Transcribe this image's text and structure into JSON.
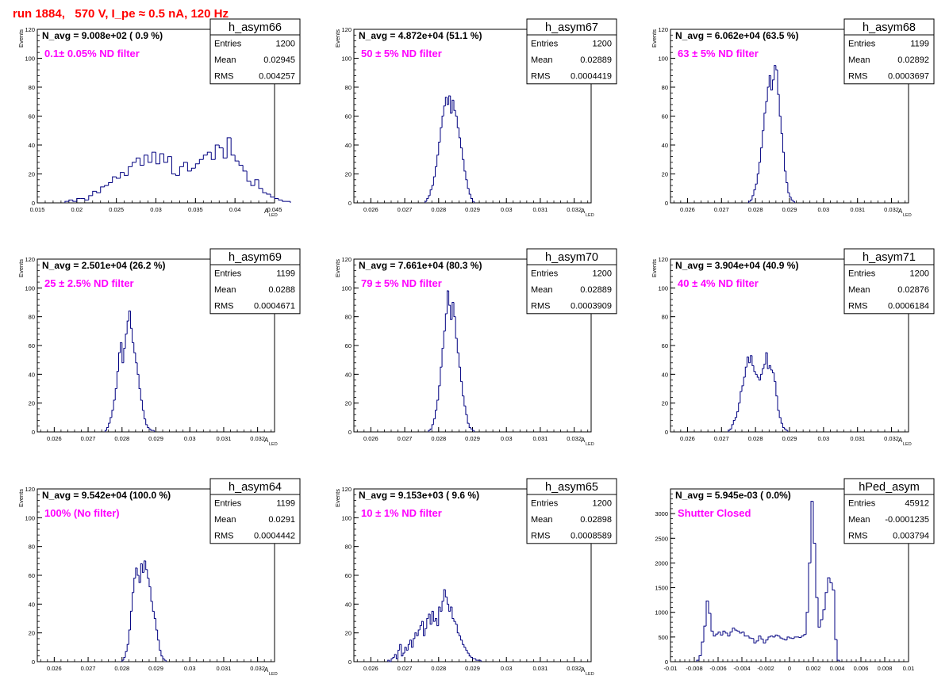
{
  "page_title": "run 1884,   570 V, I_pe ≈ 0.5 nA, 120 Hz",
  "style": {
    "histogram_color": "#000080",
    "annotation_color": "#ff00ff",
    "title_color": "#ff0000"
  },
  "stats_labels": {
    "entries": "Entries",
    "mean": "Mean",
    "rms": "RMS"
  },
  "chart_data": [
    {
      "type": "histogram",
      "hist_name": "h_asym66",
      "navg": "N_avg = 9.008e+02 ( 0.9 %)",
      "annotation": "0.1± 0.05% ND filter",
      "stats": {
        "entries": "1200",
        "mean": "0.02945",
        "rms": "0.004257"
      },
      "xlabel_main": "A",
      "xlabel_sub": "LED",
      "ylabel": "Events",
      "xlim": [
        0.015,
        0.045
      ],
      "ylim": [
        0,
        120
      ],
      "x_ticks": [
        {
          "v": 0.015,
          "t": "0.015"
        },
        {
          "v": 0.02,
          "t": "0.02"
        },
        {
          "v": 0.025,
          "t": "0.025"
        },
        {
          "v": 0.03,
          "t": "0.03"
        },
        {
          "v": 0.035,
          "t": "0.035"
        },
        {
          "v": 0.04,
          "t": "0.04"
        },
        {
          "v": 0.045,
          "t": "0.045"
        }
      ],
      "y_ticks": [
        0,
        20,
        40,
        60,
        80,
        100,
        120
      ],
      "bin_start": 0.0185,
      "bin_width": 0.0005,
      "values": [
        1,
        2,
        1,
        3,
        3,
        2,
        5,
        8,
        7,
        11,
        12,
        14,
        18,
        17,
        21,
        19,
        25,
        28,
        31,
        26,
        33,
        28,
        35,
        27,
        34,
        28,
        32,
        20,
        19,
        25,
        28,
        22,
        24,
        27,
        30,
        33,
        35,
        30,
        40,
        38,
        31,
        45,
        33,
        29,
        26,
        22,
        15,
        12,
        16,
        10,
        7,
        6,
        4,
        3,
        2,
        1,
        1
      ]
    },
    {
      "type": "histogram",
      "hist_name": "h_asym67",
      "navg": "N_avg = 4.872e+04 (51.1 %)",
      "annotation": "50 ± 5% ND filter",
      "stats": {
        "entries": "1200",
        "mean": "0.02889",
        "rms": "0.0004419"
      },
      "xlabel_main": "A",
      "xlabel_sub": "LED",
      "ylabel": "Events",
      "xlim": [
        0.0255,
        0.0325
      ],
      "ylim": [
        0,
        120
      ],
      "x_ticks": [
        {
          "v": 0.026,
          "t": "0.026"
        },
        {
          "v": 0.027,
          "t": "0.027"
        },
        {
          "v": 0.028,
          "t": "0.028"
        },
        {
          "v": 0.029,
          "t": "0.029"
        },
        {
          "v": 0.03,
          "t": "0.03"
        },
        {
          "v": 0.031,
          "t": "0.031"
        },
        {
          "v": 0.032,
          "t": "0.032"
        }
      ],
      "y_ticks": [
        0,
        20,
        40,
        60,
        80,
        100,
        120
      ],
      "bin_start": 0.0276,
      "bin_width": 5e-05,
      "values": [
        1,
        3,
        5,
        9,
        12,
        18,
        25,
        33,
        42,
        52,
        60,
        67,
        73,
        68,
        74,
        62,
        71,
        64,
        60,
        52,
        45,
        38,
        30,
        22,
        16,
        10,
        6,
        3,
        1
      ]
    },
    {
      "type": "histogram",
      "hist_name": "h_asym68",
      "navg": "N_avg = 6.062e+04 (63.5 %)",
      "annotation": "63 ± 5% ND filter",
      "stats": {
        "entries": "1199",
        "mean": "0.02892",
        "rms": "0.0003697"
      },
      "xlabel_main": "A",
      "xlabel_sub": "LED",
      "ylabel": "Events",
      "xlim": [
        0.0255,
        0.0325
      ],
      "ylim": [
        0,
        120
      ],
      "x_ticks": [
        {
          "v": 0.026,
          "t": "0.026"
        },
        {
          "v": 0.027,
          "t": "0.027"
        },
        {
          "v": 0.028,
          "t": "0.028"
        },
        {
          "v": 0.029,
          "t": "0.029"
        },
        {
          "v": 0.03,
          "t": "0.03"
        },
        {
          "v": 0.031,
          "t": "0.031"
        },
        {
          "v": 0.032,
          "t": "0.032"
        }
      ],
      "y_ticks": [
        0,
        20,
        40,
        60,
        80,
        100,
        120
      ],
      "bin_start": 0.0278,
      "bin_width": 5e-05,
      "values": [
        1,
        2,
        5,
        9,
        13,
        20,
        28,
        38,
        50,
        62,
        70,
        80,
        88,
        78,
        85,
        95,
        92,
        75,
        60,
        48,
        35,
        22,
        14,
        7,
        4,
        2,
        1
      ]
    },
    {
      "type": "histogram",
      "hist_name": "h_asym69",
      "navg": "N_avg = 2.501e+04 (26.2 %)",
      "annotation": "25 ± 2.5% ND filter",
      "stats": {
        "entries": "1199",
        "mean": "0.0288",
        "rms": "0.0004671"
      },
      "xlabel_main": "A",
      "xlabel_sub": "LED",
      "ylabel": "Events",
      "xlim": [
        0.0255,
        0.0325
      ],
      "ylim": [
        0,
        120
      ],
      "x_ticks": [
        {
          "v": 0.026,
          "t": "0.026"
        },
        {
          "v": 0.027,
          "t": "0.027"
        },
        {
          "v": 0.028,
          "t": "0.028"
        },
        {
          "v": 0.029,
          "t": "0.029"
        },
        {
          "v": 0.03,
          "t": "0.03"
        },
        {
          "v": 0.031,
          "t": "0.031"
        },
        {
          "v": 0.032,
          "t": "0.032"
        }
      ],
      "y_ticks": [
        0,
        20,
        40,
        60,
        80,
        100,
        120
      ],
      "bin_start": 0.0275,
      "bin_width": 5e-05,
      "values": [
        1,
        3,
        6,
        10,
        15,
        22,
        30,
        42,
        55,
        62,
        48,
        58,
        68,
        77,
        84,
        72,
        62,
        55,
        48,
        40,
        30,
        22,
        15,
        9,
        5,
        3,
        2,
        1,
        1
      ]
    },
    {
      "type": "histogram",
      "hist_name": "h_asym70",
      "navg": "N_avg = 7.661e+04 (80.3 %)",
      "annotation": "79 ± 5% ND filter",
      "stats": {
        "entries": "1200",
        "mean": "0.02889",
        "rms": "0.0003909"
      },
      "xlabel_main": "A",
      "xlabel_sub": "LED",
      "ylabel": "Events",
      "xlim": [
        0.0255,
        0.0325
      ],
      "ylim": [
        0,
        120
      ],
      "x_ticks": [
        {
          "v": 0.026,
          "t": "0.026"
        },
        {
          "v": 0.027,
          "t": "0.027"
        },
        {
          "v": 0.028,
          "t": "0.028"
        },
        {
          "v": 0.029,
          "t": "0.029"
        },
        {
          "v": 0.03,
          "t": "0.03"
        },
        {
          "v": 0.031,
          "t": "0.031"
        },
        {
          "v": 0.032,
          "t": "0.032"
        }
      ],
      "y_ticks": [
        0,
        20,
        40,
        60,
        80,
        100,
        120
      ],
      "bin_start": 0.0277,
      "bin_width": 5e-05,
      "values": [
        1,
        2,
        5,
        9,
        15,
        22,
        32,
        45,
        58,
        70,
        82,
        98,
        88,
        78,
        90,
        80,
        65,
        55,
        45,
        35,
        25,
        18,
        12,
        6,
        3,
        2,
        1
      ]
    },
    {
      "type": "histogram",
      "hist_name": "h_asym71",
      "navg": "N_avg = 3.904e+04 (40.9 %)",
      "annotation": "40 ± 4% ND filter",
      "stats": {
        "entries": "1200",
        "mean": "0.02876",
        "rms": "0.0006184"
      },
      "xlabel_main": "A",
      "xlabel_sub": "LED",
      "ylabel": "Events",
      "xlim": [
        0.0255,
        0.0325
      ],
      "ylim": [
        0,
        120
      ],
      "x_ticks": [
        {
          "v": 0.026,
          "t": "0.026"
        },
        {
          "v": 0.027,
          "t": "0.027"
        },
        {
          "v": 0.028,
          "t": "0.028"
        },
        {
          "v": 0.029,
          "t": "0.029"
        },
        {
          "v": 0.03,
          "t": "0.03"
        },
        {
          "v": 0.031,
          "t": "0.031"
        },
        {
          "v": 0.032,
          "t": "0.032"
        }
      ],
      "y_ticks": [
        0,
        20,
        40,
        60,
        80,
        100,
        120
      ],
      "bin_start": 0.0272,
      "bin_width": 5e-05,
      "values": [
        1,
        2,
        5,
        8,
        10,
        14,
        20,
        28,
        32,
        38,
        45,
        52,
        48,
        53,
        46,
        42,
        40,
        38,
        36,
        40,
        44,
        47,
        55,
        44,
        46,
        43,
        41,
        35,
        25,
        15,
        10,
        6,
        3,
        2,
        1
      ]
    },
    {
      "type": "histogram",
      "hist_name": "h_asym64",
      "navg": "N_avg = 9.542e+04 (100.0 %)",
      "annotation": "100% (No filter)",
      "stats": {
        "entries": "1199",
        "mean": "0.0291",
        "rms": "0.0004442"
      },
      "xlabel_main": "A",
      "xlabel_sub": "LED",
      "ylabel": "Events",
      "xlim": [
        0.0255,
        0.0325
      ],
      "ylim": [
        0,
        120
      ],
      "x_ticks": [
        {
          "v": 0.026,
          "t": "0.026"
        },
        {
          "v": 0.027,
          "t": "0.027"
        },
        {
          "v": 0.028,
          "t": "0.028"
        },
        {
          "v": 0.029,
          "t": "0.029"
        },
        {
          "v": 0.03,
          "t": "0.03"
        },
        {
          "v": 0.031,
          "t": "0.031"
        },
        {
          "v": 0.032,
          "t": "0.032"
        }
      ],
      "y_ticks": [
        0,
        20,
        40,
        60,
        80,
        100,
        120
      ],
      "bin_start": 0.028,
      "bin_width": 5e-05,
      "values": [
        1,
        3,
        7,
        12,
        22,
        35,
        48,
        58,
        65,
        60,
        55,
        68,
        62,
        70,
        64,
        58,
        52,
        42,
        35,
        30,
        22,
        15,
        8,
        4,
        2,
        1
      ]
    },
    {
      "type": "histogram",
      "hist_name": "h_asym65",
      "navg": "N_avg = 9.153e+03 ( 9.6 %)",
      "annotation": "10 ± 1% ND filter",
      "stats": {
        "entries": "1200",
        "mean": "0.02898",
        "rms": "0.0008589"
      },
      "xlabel_main": "A",
      "xlabel_sub": "LED",
      "ylabel": "Events",
      "xlim": [
        0.0255,
        0.0325
      ],
      "ylim": [
        0,
        120
      ],
      "x_ticks": [
        {
          "v": 0.026,
          "t": "0.026"
        },
        {
          "v": 0.027,
          "t": "0.027"
        },
        {
          "v": 0.028,
          "t": "0.028"
        },
        {
          "v": 0.029,
          "t": "0.029"
        },
        {
          "v": 0.03,
          "t": "0.03"
        },
        {
          "v": 0.031,
          "t": "0.031"
        },
        {
          "v": 0.032,
          "t": "0.032"
        }
      ],
      "y_ticks": [
        0,
        20,
        40,
        60,
        80,
        100,
        120
      ],
      "bin_start": 0.0265,
      "bin_width": 5e-05,
      "values": [
        1,
        0,
        2,
        3,
        5,
        2,
        8,
        12,
        4,
        6,
        10,
        8,
        12,
        15,
        10,
        16,
        20,
        18,
        22,
        25,
        28,
        18,
        23,
        30,
        33,
        26,
        35,
        28,
        30,
        25,
        38,
        35,
        42,
        50,
        45,
        40,
        35,
        38,
        30,
        28,
        26,
        20,
        18,
        15,
        12,
        10,
        8,
        6,
        4,
        3,
        2,
        2,
        1,
        1,
        1
      ]
    },
    {
      "type": "histogram",
      "hist_name": "hPed_asym",
      "navg": "N_avg = 5.945e-03 ( 0.0%)",
      "annotation": "Shutter Closed",
      "stats": {
        "entries": "45912",
        "mean": "-0.0001235",
        "rms": "0.003794"
      },
      "xlabel_main": "",
      "xlabel_sub": "",
      "ylabel": "",
      "xlim": [
        -0.01,
        0.01
      ],
      "ylim": [
        0,
        3500
      ],
      "x_ticks": [
        {
          "v": -0.01,
          "t": "-0.01"
        },
        {
          "v": -0.008,
          "t": "-0.008"
        },
        {
          "v": -0.006,
          "t": "-0.006"
        },
        {
          "v": -0.004,
          "t": "-0.004"
        },
        {
          "v": -0.002,
          "t": "-0.002"
        },
        {
          "v": 0,
          "t": "0"
        },
        {
          "v": 0.002,
          "t": "0.002"
        },
        {
          "v": 0.004,
          "t": "0.004"
        },
        {
          "v": 0.006,
          "t": "0.006"
        },
        {
          "v": 0.008,
          "t": "0.008"
        },
        {
          "v": 0.01,
          "t": "0.01"
        }
      ],
      "y_ticks": [
        0,
        500,
        1000,
        1500,
        2000,
        2500,
        3000
      ],
      "bin_start": -0.0078,
      "bin_width": 0.0002,
      "values": [
        30,
        120,
        400,
        720,
        1230,
        980,
        620,
        520,
        560,
        600,
        540,
        620,
        580,
        520,
        600,
        680,
        640,
        620,
        580,
        600,
        520,
        520,
        480,
        470,
        380,
        420,
        520,
        460,
        380,
        440,
        500,
        520,
        500,
        540,
        520,
        480,
        460,
        440,
        500,
        480,
        470,
        500,
        500,
        490,
        520,
        550,
        1000,
        2000,
        3250,
        2400,
        1300,
        700,
        850,
        1050,
        1400,
        1700,
        1600,
        1450,
        450,
        30
      ]
    }
  ]
}
